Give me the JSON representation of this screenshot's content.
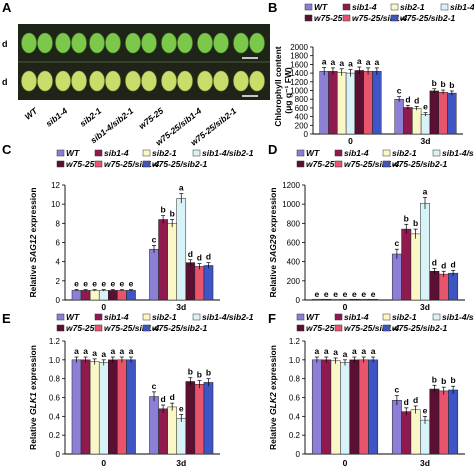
{
  "panel_a": {
    "label": "A",
    "row_labels": [
      "d",
      "d"
    ],
    "genotypes": [
      "WT",
      "sib1-4",
      "sib2-1",
      "sib1-4/sib2-1",
      "w75-25",
      "w75-25/sib1-4",
      "w75-25/sib2-1"
    ]
  },
  "legend": {
    "labels": [
      "WT",
      "sib1-4",
      "sib2-1",
      "sib1-4/sib2-1",
      "w75-25",
      "w75-25/sib1-4",
      "w75-25/sib2-1"
    ]
  },
  "colors": {
    "series": [
      "#8b7fd6",
      "#8e1a4e",
      "#fbf7c6",
      "#d8f3f8",
      "#5a0f33",
      "#e8546c",
      "#3f55c4"
    ],
    "leaf_green": "#7cc84a",
    "leaf_yellow": "#c9de6a",
    "photo_bg": "#1e2418"
  },
  "chart_data": [
    {
      "panel": "B",
      "type": "bar",
      "categories": [
        "0",
        "3d"
      ],
      "ylabel_prefix": "Chlorophyll content",
      "ylabel_unit": "(μg g⁻¹ FW)",
      "ylim": [
        0,
        2000
      ],
      "yticks": [
        "0",
        "200",
        "400",
        "600",
        "800",
        "1000",
        "1200",
        "1400",
        "1600",
        "1800",
        "2000"
      ],
      "series": [
        {
          "name": "WT",
          "values": [
            1440,
            800
          ],
          "errors": [
            90,
            60
          ],
          "letters": [
            "a",
            "c"
          ]
        },
        {
          "name": "sib1-4",
          "values": [
            1440,
            610
          ],
          "errors": [
            80,
            50
          ],
          "letters": [
            "a",
            "d"
          ]
        },
        {
          "name": "sib2-1",
          "values": [
            1420,
            590
          ],
          "errors": [
            80,
            45
          ],
          "letters": [
            "a",
            "d"
          ]
        },
        {
          "name": "sib1-4/sib2-1",
          "values": [
            1400,
            450
          ],
          "errors": [
            80,
            40
          ],
          "letters": [
            "a",
            "e"
          ]
        },
        {
          "name": "w75-25",
          "values": [
            1460,
            990
          ],
          "errors": [
            80,
            50
          ],
          "letters": [
            "a",
            "b"
          ]
        },
        {
          "name": "w75-25/sib1-4",
          "values": [
            1440,
            960
          ],
          "errors": [
            80,
            50
          ],
          "letters": [
            "a",
            "b"
          ]
        },
        {
          "name": "w75-25/sib2-1",
          "values": [
            1440,
            940
          ],
          "errors": [
            80,
            50
          ],
          "letters": [
            "a",
            "b"
          ]
        }
      ]
    },
    {
      "panel": "C",
      "type": "bar",
      "categories": [
        "0",
        "3d"
      ],
      "ylabel_prefix": "Relative",
      "ylabel_gene": "SAG12",
      "ylabel_suffix": "expression",
      "ylim": [
        0,
        12
      ],
      "yticks": [
        "0",
        "2",
        "4",
        "6",
        "8",
        "10",
        "12"
      ],
      "series": [
        {
          "name": "WT",
          "values": [
            1.0,
            5.3
          ],
          "errors": [
            0.08,
            0.4
          ],
          "letters": [
            "e",
            "c"
          ]
        },
        {
          "name": "sib1-4",
          "values": [
            1.0,
            8.4
          ],
          "errors": [
            0.08,
            0.4
          ],
          "letters": [
            "e",
            "b"
          ]
        },
        {
          "name": "sib2-1",
          "values": [
            1.0,
            8.0
          ],
          "errors": [
            0.08,
            0.4
          ],
          "letters": [
            "e",
            "b"
          ]
        },
        {
          "name": "sib1-4/sib2-1",
          "values": [
            1.0,
            10.6
          ],
          "errors": [
            0.08,
            0.5
          ],
          "letters": [
            "e",
            "a"
          ]
        },
        {
          "name": "w75-25",
          "values": [
            1.0,
            3.9
          ],
          "errors": [
            0.08,
            0.3
          ],
          "letters": [
            "e",
            "d"
          ]
        },
        {
          "name": "w75-25/sib1-4",
          "values": [
            1.0,
            3.5
          ],
          "errors": [
            0.08,
            0.3
          ],
          "letters": [
            "e",
            "d"
          ]
        },
        {
          "name": "w75-25/sib2-1",
          "values": [
            1.0,
            3.6
          ],
          "errors": [
            0.08,
            0.3
          ],
          "letters": [
            "e",
            "d"
          ]
        }
      ]
    },
    {
      "panel": "D",
      "type": "bar",
      "categories": [
        "0",
        "3d"
      ],
      "ylabel_prefix": "Relative",
      "ylabel_gene": "SAG29",
      "ylabel_suffix": "expression",
      "ylim": [
        0,
        1200
      ],
      "yticks": [
        "0",
        "200",
        "400",
        "600",
        "800",
        "1000",
        "1200"
      ],
      "series": [
        {
          "name": "WT",
          "values": [
            1,
            480
          ],
          "errors": [
            0,
            50
          ],
          "letters": [
            "e",
            "c"
          ]
        },
        {
          "name": "sib1-4",
          "values": [
            1,
            740
          ],
          "errors": [
            0,
            50
          ],
          "letters": [
            "e",
            "b"
          ]
        },
        {
          "name": "sib2-1",
          "values": [
            1,
            690
          ],
          "errors": [
            0,
            50
          ],
          "letters": [
            "e",
            "b"
          ]
        },
        {
          "name": "sib1-4/sib2-1",
          "values": [
            1,
            1010
          ],
          "errors": [
            0,
            60
          ],
          "letters": [
            "e",
            "a"
          ]
        },
        {
          "name": "w75-25",
          "values": [
            1,
            300
          ],
          "errors": [
            0,
            30
          ],
          "letters": [
            "e",
            "d"
          ]
        },
        {
          "name": "w75-25/sib1-4",
          "values": [
            1,
            270
          ],
          "errors": [
            0,
            30
          ],
          "letters": [
            "e",
            "d"
          ]
        },
        {
          "name": "w75-25/sib2-1",
          "values": [
            1,
            280
          ],
          "errors": [
            0,
            30
          ],
          "letters": [
            "e",
            "d"
          ]
        }
      ]
    },
    {
      "panel": "E",
      "type": "bar",
      "categories": [
        "0",
        "3d"
      ],
      "ylabel_prefix": "Relative",
      "ylabel_gene": "GLK1",
      "ylabel_suffix": "expression",
      "ylim": [
        0,
        1.2
      ],
      "yticks": [
        "0",
        "0.2",
        "0.4",
        "0.6",
        "0.8",
        "1.0",
        "1.2"
      ],
      "series": [
        {
          "name": "WT",
          "values": [
            1.0,
            0.61
          ],
          "errors": [
            0.03,
            0.05
          ],
          "letters": [
            "a",
            "c"
          ]
        },
        {
          "name": "sib1-4",
          "values": [
            1.0,
            0.48
          ],
          "errors": [
            0.03,
            0.04
          ],
          "letters": [
            "a",
            "d"
          ]
        },
        {
          "name": "sib2-1",
          "values": [
            0.98,
            0.5
          ],
          "errors": [
            0.03,
            0.04
          ],
          "letters": [
            "a",
            "d"
          ]
        },
        {
          "name": "sib1-4/sib2-1",
          "values": [
            0.97,
            0.38
          ],
          "errors": [
            0.03,
            0.04
          ],
          "letters": [
            "a",
            "e"
          ]
        },
        {
          "name": "w75-25",
          "values": [
            1.0,
            0.77
          ],
          "errors": [
            0.03,
            0.04
          ],
          "letters": [
            "a",
            "b"
          ]
        },
        {
          "name": "w75-25/sib1-4",
          "values": [
            1.0,
            0.74
          ],
          "errors": [
            0.03,
            0.04
          ],
          "letters": [
            "a",
            "b"
          ]
        },
        {
          "name": "w75-25/sib2-1",
          "values": [
            1.0,
            0.76
          ],
          "errors": [
            0.03,
            0.04
          ],
          "letters": [
            "a",
            "b"
          ]
        }
      ]
    },
    {
      "panel": "F",
      "type": "bar",
      "categories": [
        "0",
        "3d"
      ],
      "ylabel_prefix": "Relative",
      "ylabel_gene": "GLK2",
      "ylabel_suffix": "expression",
      "ylim": [
        0,
        1.2
      ],
      "yticks": [
        "0",
        "0.2",
        "0.4",
        "0.6",
        "0.8",
        "1.0",
        "1.2"
      ],
      "series": [
        {
          "name": "WT",
          "values": [
            1.0,
            0.57
          ],
          "errors": [
            0.03,
            0.05
          ],
          "letters": [
            "a",
            "c"
          ]
        },
        {
          "name": "sib1-4",
          "values": [
            1.0,
            0.45
          ],
          "errors": [
            0.03,
            0.04
          ],
          "letters": [
            "a",
            "d"
          ]
        },
        {
          "name": "sib2-1",
          "values": [
            0.99,
            0.47
          ],
          "errors": [
            0.03,
            0.04
          ],
          "letters": [
            "a",
            "d"
          ]
        },
        {
          "name": "sib1-4/sib2-1",
          "values": [
            0.97,
            0.36
          ],
          "errors": [
            0.03,
            0.04
          ],
          "letters": [
            "a",
            "e"
          ]
        },
        {
          "name": "w75-25",
          "values": [
            1.0,
            0.69
          ],
          "errors": [
            0.03,
            0.04
          ],
          "letters": [
            "a",
            "b"
          ]
        },
        {
          "name": "w75-25/sib1-4",
          "values": [
            1.0,
            0.67
          ],
          "errors": [
            0.03,
            0.04
          ],
          "letters": [
            "a",
            "b"
          ]
        },
        {
          "name": "w75-25/sib2-1",
          "values": [
            1.0,
            0.68
          ],
          "errors": [
            0.03,
            0.04
          ],
          "letters": [
            "a",
            "b"
          ]
        }
      ]
    }
  ]
}
